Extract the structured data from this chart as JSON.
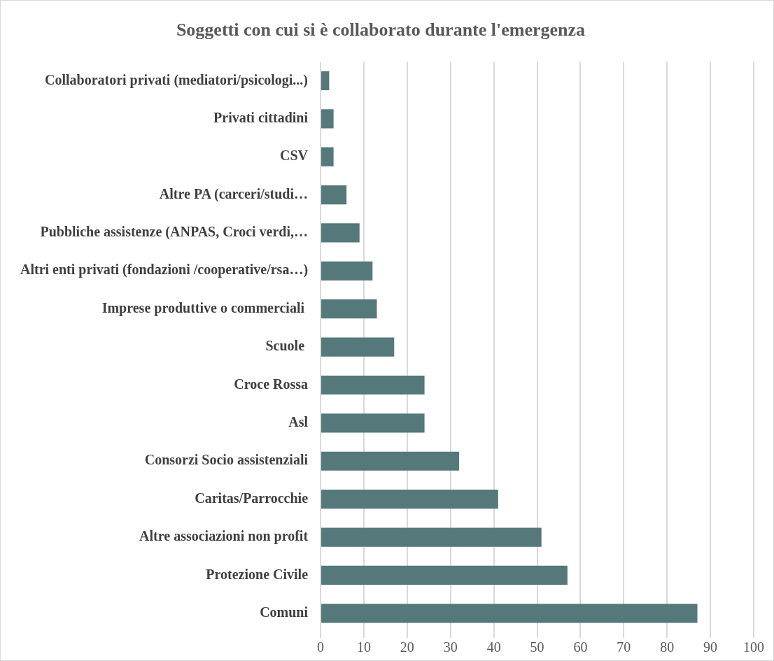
{
  "chart_data": {
    "type": "bar",
    "orientation": "horizontal",
    "title": "Soggetti con cui si è collaborato durante l'emergenza",
    "categories": [
      "Collaboratori privati (mediatori/psicologi...)",
      "Privati cittadini",
      "CSV",
      "Altre PA (carceri/studi…",
      "Pubbliche assistenze (ANPAS, Croci verdi,…",
      "Altri enti privati (fondazioni /cooperative/rsa…)",
      "Imprese produttive o commerciali ",
      "Scuole ",
      "Croce Rossa",
      "Asl",
      "Consorzi Socio assistenziali",
      "Caritas/Parrocchie",
      "Altre associazioni non profit",
      "Protezione Civile",
      "Comuni"
    ],
    "values": [
      2,
      3,
      3,
      6,
      9,
      12,
      13,
      17,
      24,
      24,
      32,
      41,
      51,
      57,
      87
    ],
    "color": "#55787a",
    "xlim": [
      0,
      100
    ],
    "xticks": [
      0,
      10,
      20,
      30,
      40,
      50,
      60,
      70,
      80,
      90,
      100
    ],
    "grid": "x",
    "legend": false
  }
}
